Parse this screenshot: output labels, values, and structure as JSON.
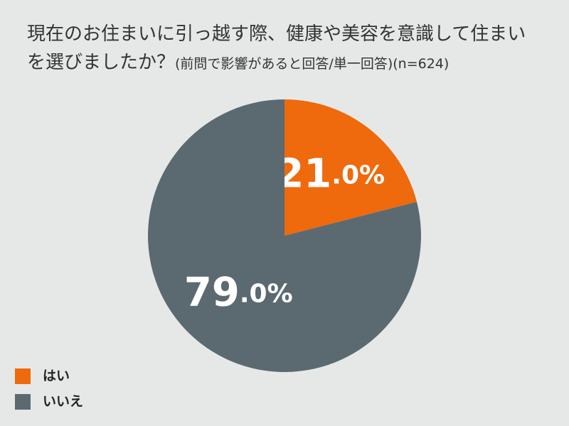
{
  "chart_data": {
    "type": "pie",
    "title": "現在のお住まいに引っ越す際、健康や美容を意識して住まいを選びましたか？",
    "subtitle": "(前問で影響があると回答/単一回答)(n=624)",
    "categories": [
      "はい",
      "いいえ"
    ],
    "values": [
      21.0,
      79.0
    ],
    "value_labels": [
      "21.0%",
      "79.0%"
    ],
    "colors": [
      "#ee6a0c",
      "#5b6a70"
    ],
    "legend": "bottom-left"
  }
}
